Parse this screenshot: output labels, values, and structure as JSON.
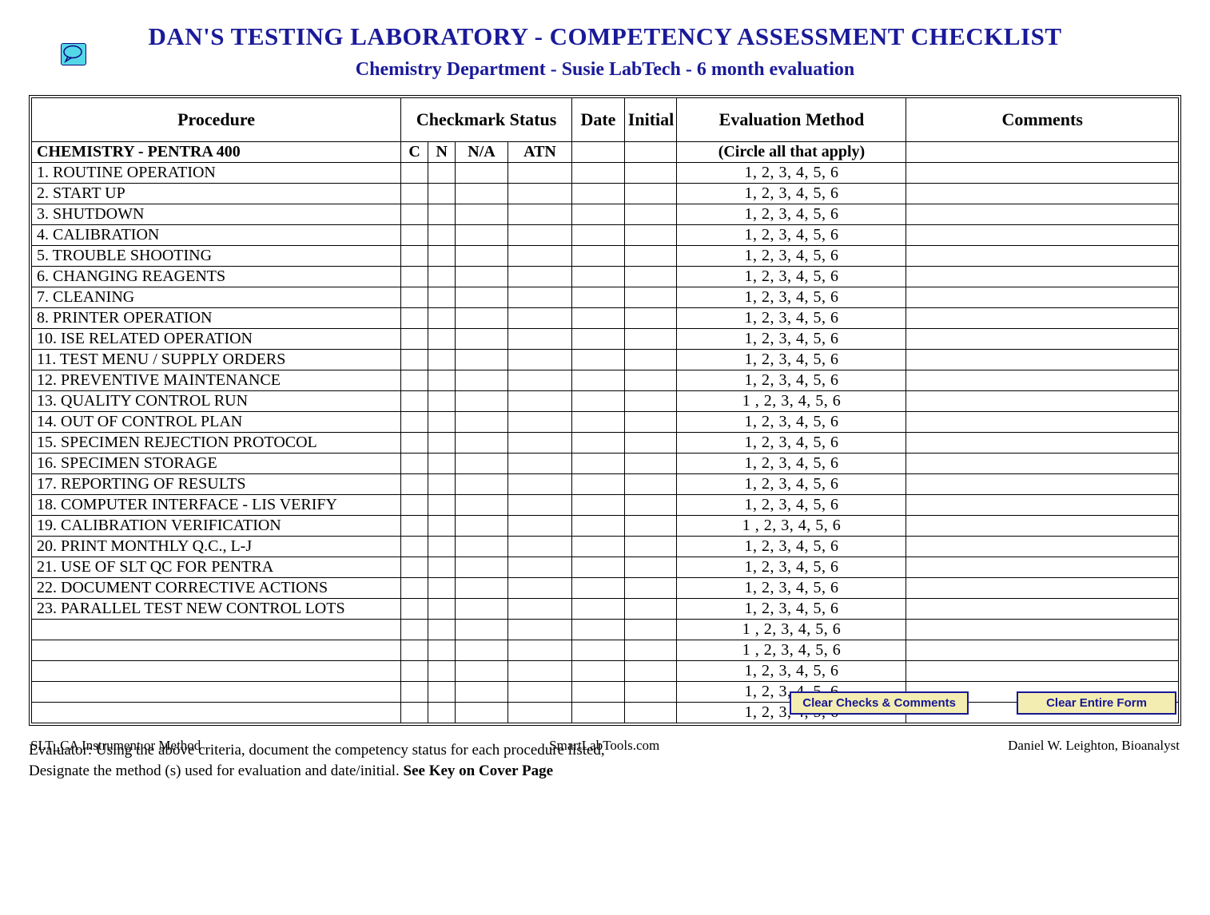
{
  "header": {
    "title": "DAN'S TESTING LABORATORY - COMPETENCY ASSESSMENT CHECKLIST",
    "subtitle": "Chemistry Department - Susie LabTech - 6 month evaluation",
    "title_color": "#1a1a99"
  },
  "columns": {
    "procedure": "Procedure",
    "checkmark_group": "Checkmark Status",
    "date": "Date",
    "initial": "Initial",
    "evaluation": "Evaluation Method",
    "comments": "Comments"
  },
  "section": {
    "name": "CHEMISTRY - PENTRA 400",
    "check_cols": {
      "c": "C",
      "n": "N",
      "na": "N/A",
      "atn": "ATN"
    },
    "circle_label": "(Circle all that apply)"
  },
  "eval_options": "1,   2,   3,   4,   5,   6",
  "eval_options_tight": "1 ,  2,   3,   4,   5,   6",
  "procedures": [
    "1.   ROUTINE OPERATION",
    "2.   START UP",
    "3.   SHUTDOWN",
    "4.   CALIBRATION",
    "5.   TROUBLE SHOOTING",
    "6.   CHANGING REAGENTS",
    "7.   CLEANING",
    "8.   PRINTER OPERATION",
    "10. ISE RELATED OPERATION",
    "11. TEST MENU / SUPPLY ORDERS",
    "12. PREVENTIVE MAINTENANCE",
    "13. QUALITY CONTROL RUN",
    "14. OUT OF CONTROL PLAN",
    "15. SPECIMEN REJECTION PROTOCOL",
    "16. SPECIMEN STORAGE",
    "17. REPORTING OF RESULTS",
    "18. COMPUTER INTERFACE - LIS VERIFY",
    "19. CALIBRATION VERIFICATION",
    "20. PRINT MONTHLY Q.C., L-J",
    "21. USE OF SLT QC FOR PENTRA",
    "22. DOCUMENT CORRECTIVE ACTIONS",
    "23. PARALLEL TEST NEW CONTROL LOTS",
    "",
    "",
    "",
    "",
    ""
  ],
  "tight_eval_rows": [
    11,
    17,
    22,
    23
  ],
  "instructions": {
    "line1": "Evaluator: Using the above criteria, document the competency status for each procedure listed,",
    "line2_prefix": "Designate the method (s) used for evaluation and date/initial.  ",
    "line2_bold": "See Key on Cover Page"
  },
  "buttons": {
    "clear_checks": "Clear Checks & Comments",
    "clear_form": "Clear Entire Form"
  },
  "footer": {
    "left": "SLT_CA Instrument or Method",
    "center": "SmartLabTools.com",
    "right": "Daniel W. Leighton, Bioanalyst"
  },
  "styling": {
    "icon_bg": "#54d8e8",
    "icon_border": "#0a0a80",
    "button_bg": "#f3edb2",
    "button_border": "#171795",
    "button_text": "#171795"
  }
}
